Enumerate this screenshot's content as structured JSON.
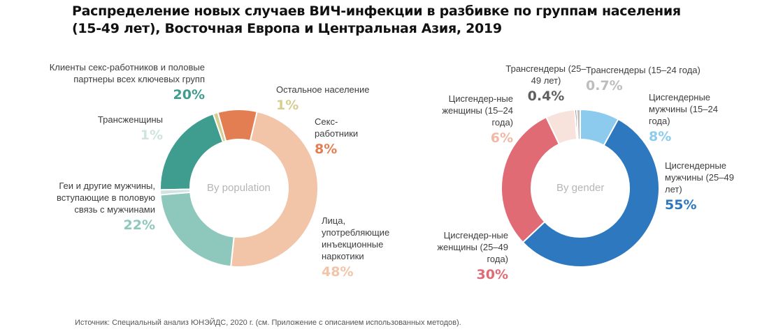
{
  "title": "Распределение новых случаев ВИЧ-инфекции в разбивке по группам населения (15-49 лет), Восточная Европа и Центральная Азия, 2019",
  "source": "Источник: Специальный анализ ЮНЭЙДС, 2020 г. (см. Приложение с описанием использованных методов).",
  "chart_data": [
    {
      "type": "pie",
      "center_label": "By population",
      "categories": [
        "Клиенты секс-работников и половые партнеры всех ключевых групп",
        "Остальное население",
        "Секс-работники",
        "Лица, употребляющие инъекционные наркотики",
        "Геи и другие мужчины, вступающие в половую связь с мужчинами",
        "Трансженщины"
      ],
      "values": [
        20,
        1,
        8,
        48,
        22,
        1
      ],
      "value_labels": [
        "20%",
        "1%",
        "8%",
        "48%",
        "22%",
        "1%"
      ],
      "colors": [
        "#3f9d8f",
        "#d6cd90",
        "#e27e52",
        "#f2c4a8",
        "#8ec8bc",
        "#cfe3e0"
      ]
    },
    {
      "type": "pie",
      "center_label": "By gender",
      "categories": [
        "Цисгендерные мужчины (15–24 года)",
        "Цисгендерные мужчины (25–49 лет)",
        "Цисгендер-ные женщины (25–49 года)",
        "Цисгендер-ные женщины (15–24 года)",
        "Трансгендеры (25–49 лет)",
        "Трансгендеры (15–24 года)"
      ],
      "values": [
        8,
        55,
        30,
        6,
        0.4,
        0.7
      ],
      "value_labels": [
        "8%",
        "55%",
        "30%",
        "6%",
        "0.4%",
        "0.7%"
      ],
      "colors": [
        "#8ccbee",
        "#2e78bf",
        "#e06b74",
        "#f8e2dc",
        "#5f5f5f",
        "#bdbdbd"
      ]
    }
  ],
  "labels": {
    "pop": {
      "clients": "Клиенты секс-работников и половые партнеры всех ключевых групп",
      "other": "Остальное население",
      "sw": "Секс-работники",
      "pwid": "Лица, употребляющие инъекционные наркотики",
      "msm": "Геи и другие мужчины, вступающие в половую связь с мужчинами",
      "trans": "Трансженщины"
    },
    "gender": {
      "m1524": "Цисгендерные мужчины (15–24 года)",
      "m2549": "Цисгендерные мужчины (25–49 лет)",
      "f2549": "Цисгендер-ные женщины (25–49 года)",
      "f1524": "Цисгендер-ные женщины (15–24 года)",
      "t2549": "Трансгендеры (25–49 лет)",
      "t1524": "Трансгендеры (15–24 года)"
    }
  }
}
